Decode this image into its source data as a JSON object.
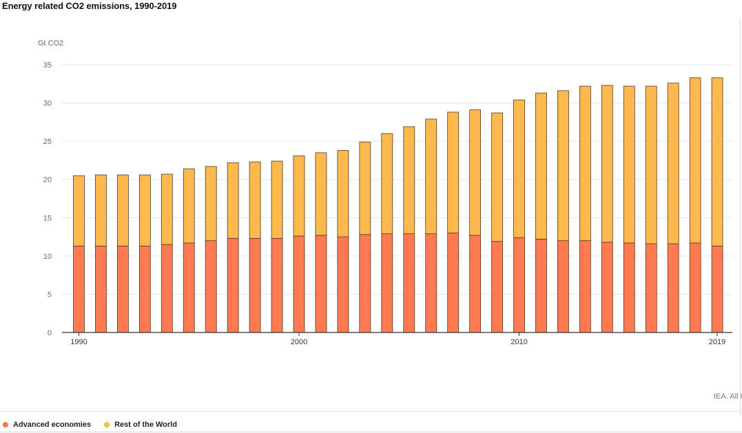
{
  "title": "Energy related CO2 emissions, 1990-2019",
  "source": "IEA. All I",
  "chart_data": {
    "type": "bar",
    "stacked": true,
    "ylabel": "Gt CO2",
    "ylim": [
      0,
      35
    ],
    "yticks": [
      0,
      5,
      10,
      15,
      20,
      25,
      30,
      35
    ],
    "xticks": [
      "1990",
      "2000",
      "2010",
      "2019"
    ],
    "categories": [
      "1990",
      "1991",
      "1992",
      "1993",
      "1994",
      "1995",
      "1996",
      "1997",
      "1998",
      "1999",
      "2000",
      "2001",
      "2002",
      "2003",
      "2004",
      "2005",
      "2006",
      "2007",
      "2008",
      "2009",
      "2010",
      "2011",
      "2012",
      "2013",
      "2014",
      "2015",
      "2016",
      "2017",
      "2018",
      "2019"
    ],
    "grid": true,
    "legend": "bottom-left",
    "series": [
      {
        "name": "Advanced economies",
        "color": "#ff7a50",
        "values": [
          11.3,
          11.3,
          11.3,
          11.3,
          11.5,
          11.7,
          12.0,
          12.3,
          12.3,
          12.3,
          12.6,
          12.7,
          12.5,
          12.8,
          12.9,
          12.9,
          12.9,
          13.0,
          12.7,
          11.9,
          12.4,
          12.2,
          12.0,
          12.0,
          11.8,
          11.7,
          11.6,
          11.6,
          11.7,
          11.3
        ]
      },
      {
        "name": "Rest of the World",
        "color": "#fdb84e",
        "values": [
          9.2,
          9.3,
          9.3,
          9.3,
          9.2,
          9.7,
          9.7,
          9.9,
          10.0,
          10.1,
          10.5,
          10.8,
          11.3,
          12.1,
          13.1,
          14.0,
          15.0,
          15.8,
          16.4,
          16.8,
          18.0,
          19.1,
          19.6,
          20.2,
          20.5,
          20.5,
          20.6,
          21.0,
          21.6,
          22.0
        ]
      }
    ]
  }
}
